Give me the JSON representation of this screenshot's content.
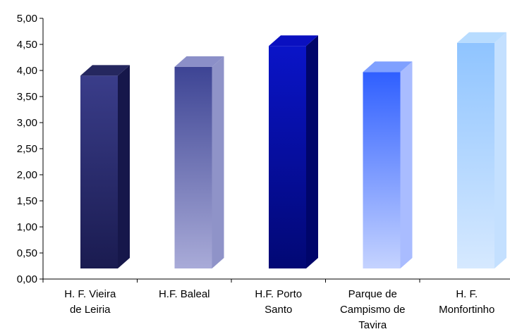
{
  "chart_data": {
    "type": "bar",
    "categories": [
      [
        "H. F. Vieira",
        "de Leiria"
      ],
      [
        "H.F. Baleal"
      ],
      [
        "H.F. Porto",
        "Santo"
      ],
      [
        "Parque de",
        "Campismo de",
        "Tavira"
      ],
      [
        "H. F.",
        "Monfortinho"
      ]
    ],
    "values": [
      3.9,
      4.07,
      4.47,
      3.97,
      4.53
    ],
    "ylim": [
      0,
      5
    ],
    "yticks": [
      "0,00",
      "0,50",
      "1,00",
      "1,50",
      "2,00",
      "2,50",
      "3,00",
      "3,50",
      "4,00",
      "4,50",
      "5,00"
    ],
    "grid": false,
    "bar_style": "3d-gradient",
    "colors": [
      {
        "top": "#3a3d8a",
        "bottom": "#1a1b50",
        "side": "#16174a",
        "cap": "#25275f"
      },
      {
        "top": "#3d4494",
        "bottom": "#a9abd8",
        "side": "#8f93c8",
        "cap": "#8b8fc8"
      },
      {
        "top": "#0a14c8",
        "bottom": "#020874",
        "side": "#00056a",
        "cap": "#0a10c0"
      },
      {
        "top": "#2f5fff",
        "bottom": "#c5d3ff",
        "side": "#a9bcff",
        "cap": "#7fa0ff"
      },
      {
        "top": "#8fc4ff",
        "bottom": "#d6e9ff",
        "side": "#c4e0ff",
        "cap": "#b8dcff"
      }
    ]
  }
}
